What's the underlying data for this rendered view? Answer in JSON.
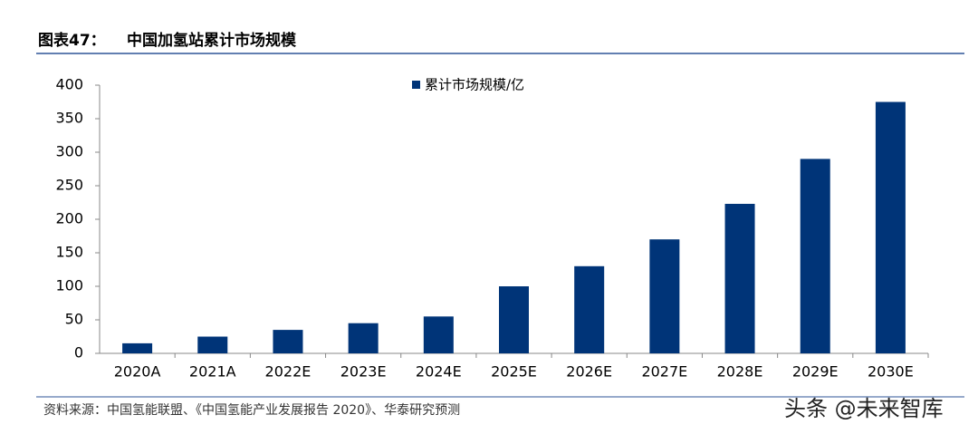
{
  "chart_data": {
    "type": "bar",
    "figure_label": "图表47：",
    "title": "中国加氢站累计市场规模",
    "categories": [
      "2020A",
      "2021A",
      "2022E",
      "2023E",
      "2024E",
      "2025E",
      "2026E",
      "2027E",
      "2028E",
      "2029E",
      "2030E"
    ],
    "series": [
      {
        "name": "累计市场规模/亿",
        "color": "#003478",
        "values": [
          15,
          25,
          35,
          45,
          55,
          100,
          130,
          170,
          223,
          290,
          375
        ]
      }
    ],
    "ylim": [
      0,
      400
    ],
    "yticks": [
      0,
      50,
      100,
      150,
      200,
      250,
      300,
      350,
      400
    ],
    "grid": false,
    "legend": "top",
    "source": "资料来源：中国氢能联盟、《中国氢能产业发展报告 2020》、华泰研究预测",
    "watermark": "头条 @未来智库"
  }
}
